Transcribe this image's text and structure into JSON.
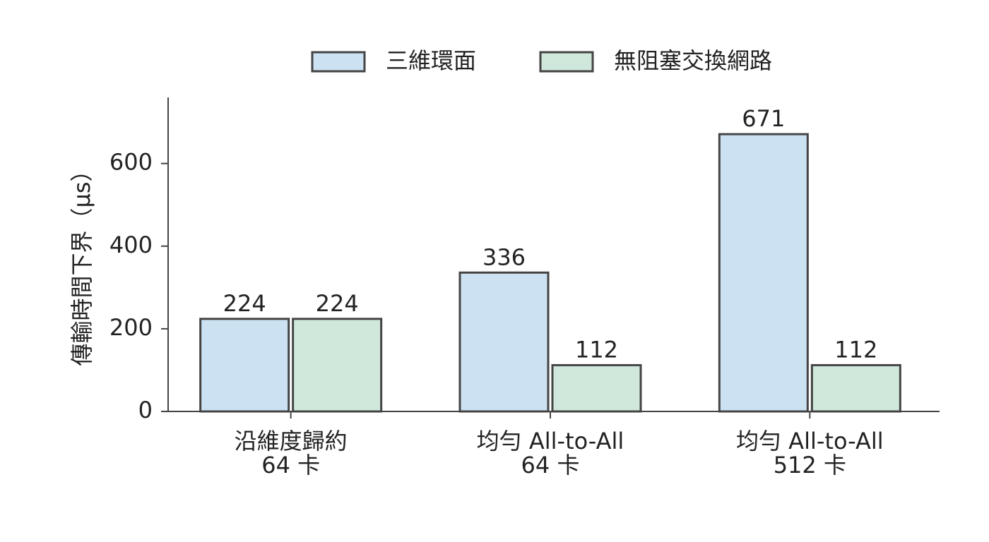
{
  "chart_data": {
    "type": "bar",
    "y_label": "傳輸時間下界（µs）",
    "categories": [
      [
        "沿維度歸約",
        "64 卡"
      ],
      [
        "均勻 All-to-All",
        "64 卡"
      ],
      [
        "均勻 All-to-All",
        "512 卡"
      ]
    ],
    "series": [
      {
        "name": "三維環面",
        "color": "#cce2f3",
        "values": [
          224,
          336,
          671
        ]
      },
      {
        "name": "無阻塞交換網路",
        "color": "#d0e8dc",
        "values": [
          224,
          112,
          112
        ]
      }
    ],
    "ylim": [
      0,
      760
    ],
    "yticks": [
      0,
      200,
      400,
      600
    ],
    "grid": false,
    "legend": "top"
  }
}
